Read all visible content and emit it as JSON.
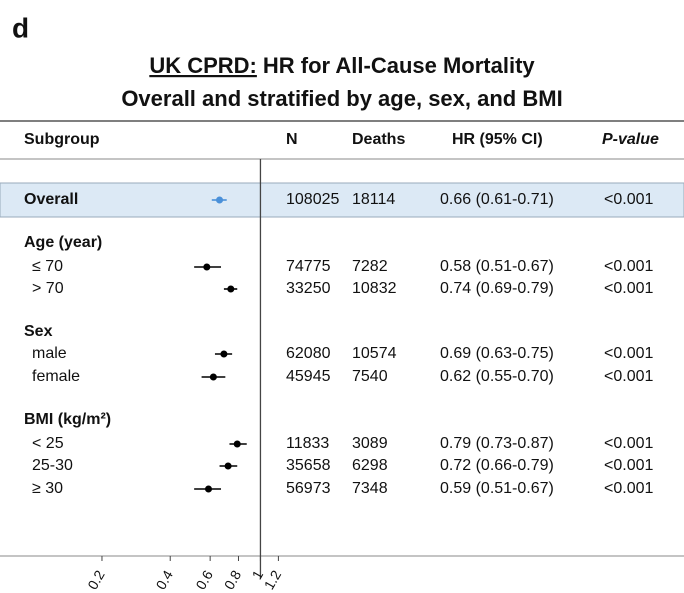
{
  "panel_label": "d",
  "chart_data": {
    "type": "forest",
    "title_prefix": "UK CPRD:",
    "title": "HR for All-Cause Mortality",
    "subtitle": "Overall and stratified by age, sex, and BMI",
    "columns": {
      "subgroup": "Subgroup",
      "n": "N",
      "deaths": "Deaths",
      "hr": "HR (95% CI)",
      "p": "P-value"
    },
    "log_x": true,
    "xlim": [
      0.16,
      1.35
    ],
    "xticks": [
      0.2,
      0.4,
      0.6,
      0.8,
      1,
      1.2
    ],
    "reference": 1,
    "rows": [
      {
        "label": "Overall",
        "n": 108025,
        "deaths": 18114,
        "hr": 0.66,
        "lo": 0.61,
        "hi": 0.71,
        "hr_label": "0.66 (0.61-0.71)",
        "p": "<0.001",
        "color": "#4a90d9",
        "highlight": "#dce9f5"
      },
      {
        "heading": "Age (year)"
      },
      {
        "label": "≤ 70",
        "n": 74775,
        "deaths": 7282,
        "hr": 0.58,
        "lo": 0.51,
        "hi": 0.67,
        "hr_label": "0.58 (0.51-0.67)",
        "p": "<0.001",
        "color": "#000000"
      },
      {
        "label": "> 70",
        "n": 33250,
        "deaths": 10832,
        "hr": 0.74,
        "lo": 0.69,
        "hi": 0.79,
        "hr_label": "0.74 (0.69-0.79)",
        "p": "<0.001",
        "color": "#000000"
      },
      {
        "heading": "Sex"
      },
      {
        "label": "male",
        "n": 62080,
        "deaths": 10574,
        "hr": 0.69,
        "lo": 0.63,
        "hi": 0.75,
        "hr_label": "0.69 (0.63-0.75)",
        "p": "<0.001",
        "color": "#000000"
      },
      {
        "label": "female",
        "n": 45945,
        "deaths": 7540,
        "hr": 0.62,
        "lo": 0.55,
        "hi": 0.7,
        "hr_label": "0.62 (0.55-0.70)",
        "p": "<0.001",
        "color": "#000000"
      },
      {
        "heading": "BMI (kg/m²)"
      },
      {
        "label": "< 25",
        "n": 11833,
        "deaths": 3089,
        "hr": 0.79,
        "lo": 0.73,
        "hi": 0.87,
        "hr_label": "0.79 (0.73-0.87)",
        "p": "<0.001",
        "color": "#000000"
      },
      {
        "label": "25-30",
        "n": 35658,
        "deaths": 6298,
        "hr": 0.72,
        "lo": 0.66,
        "hi": 0.79,
        "hr_label": "0.72 (0.66-0.79)",
        "p": "<0.001",
        "color": "#000000"
      },
      {
        "label": "≥ 30",
        "n": 56973,
        "deaths": 7348,
        "hr": 0.59,
        "lo": 0.51,
        "hi": 0.67,
        "hr_label": "0.59 (0.51-0.67)",
        "p": "<0.001",
        "color": "#000000"
      }
    ]
  }
}
